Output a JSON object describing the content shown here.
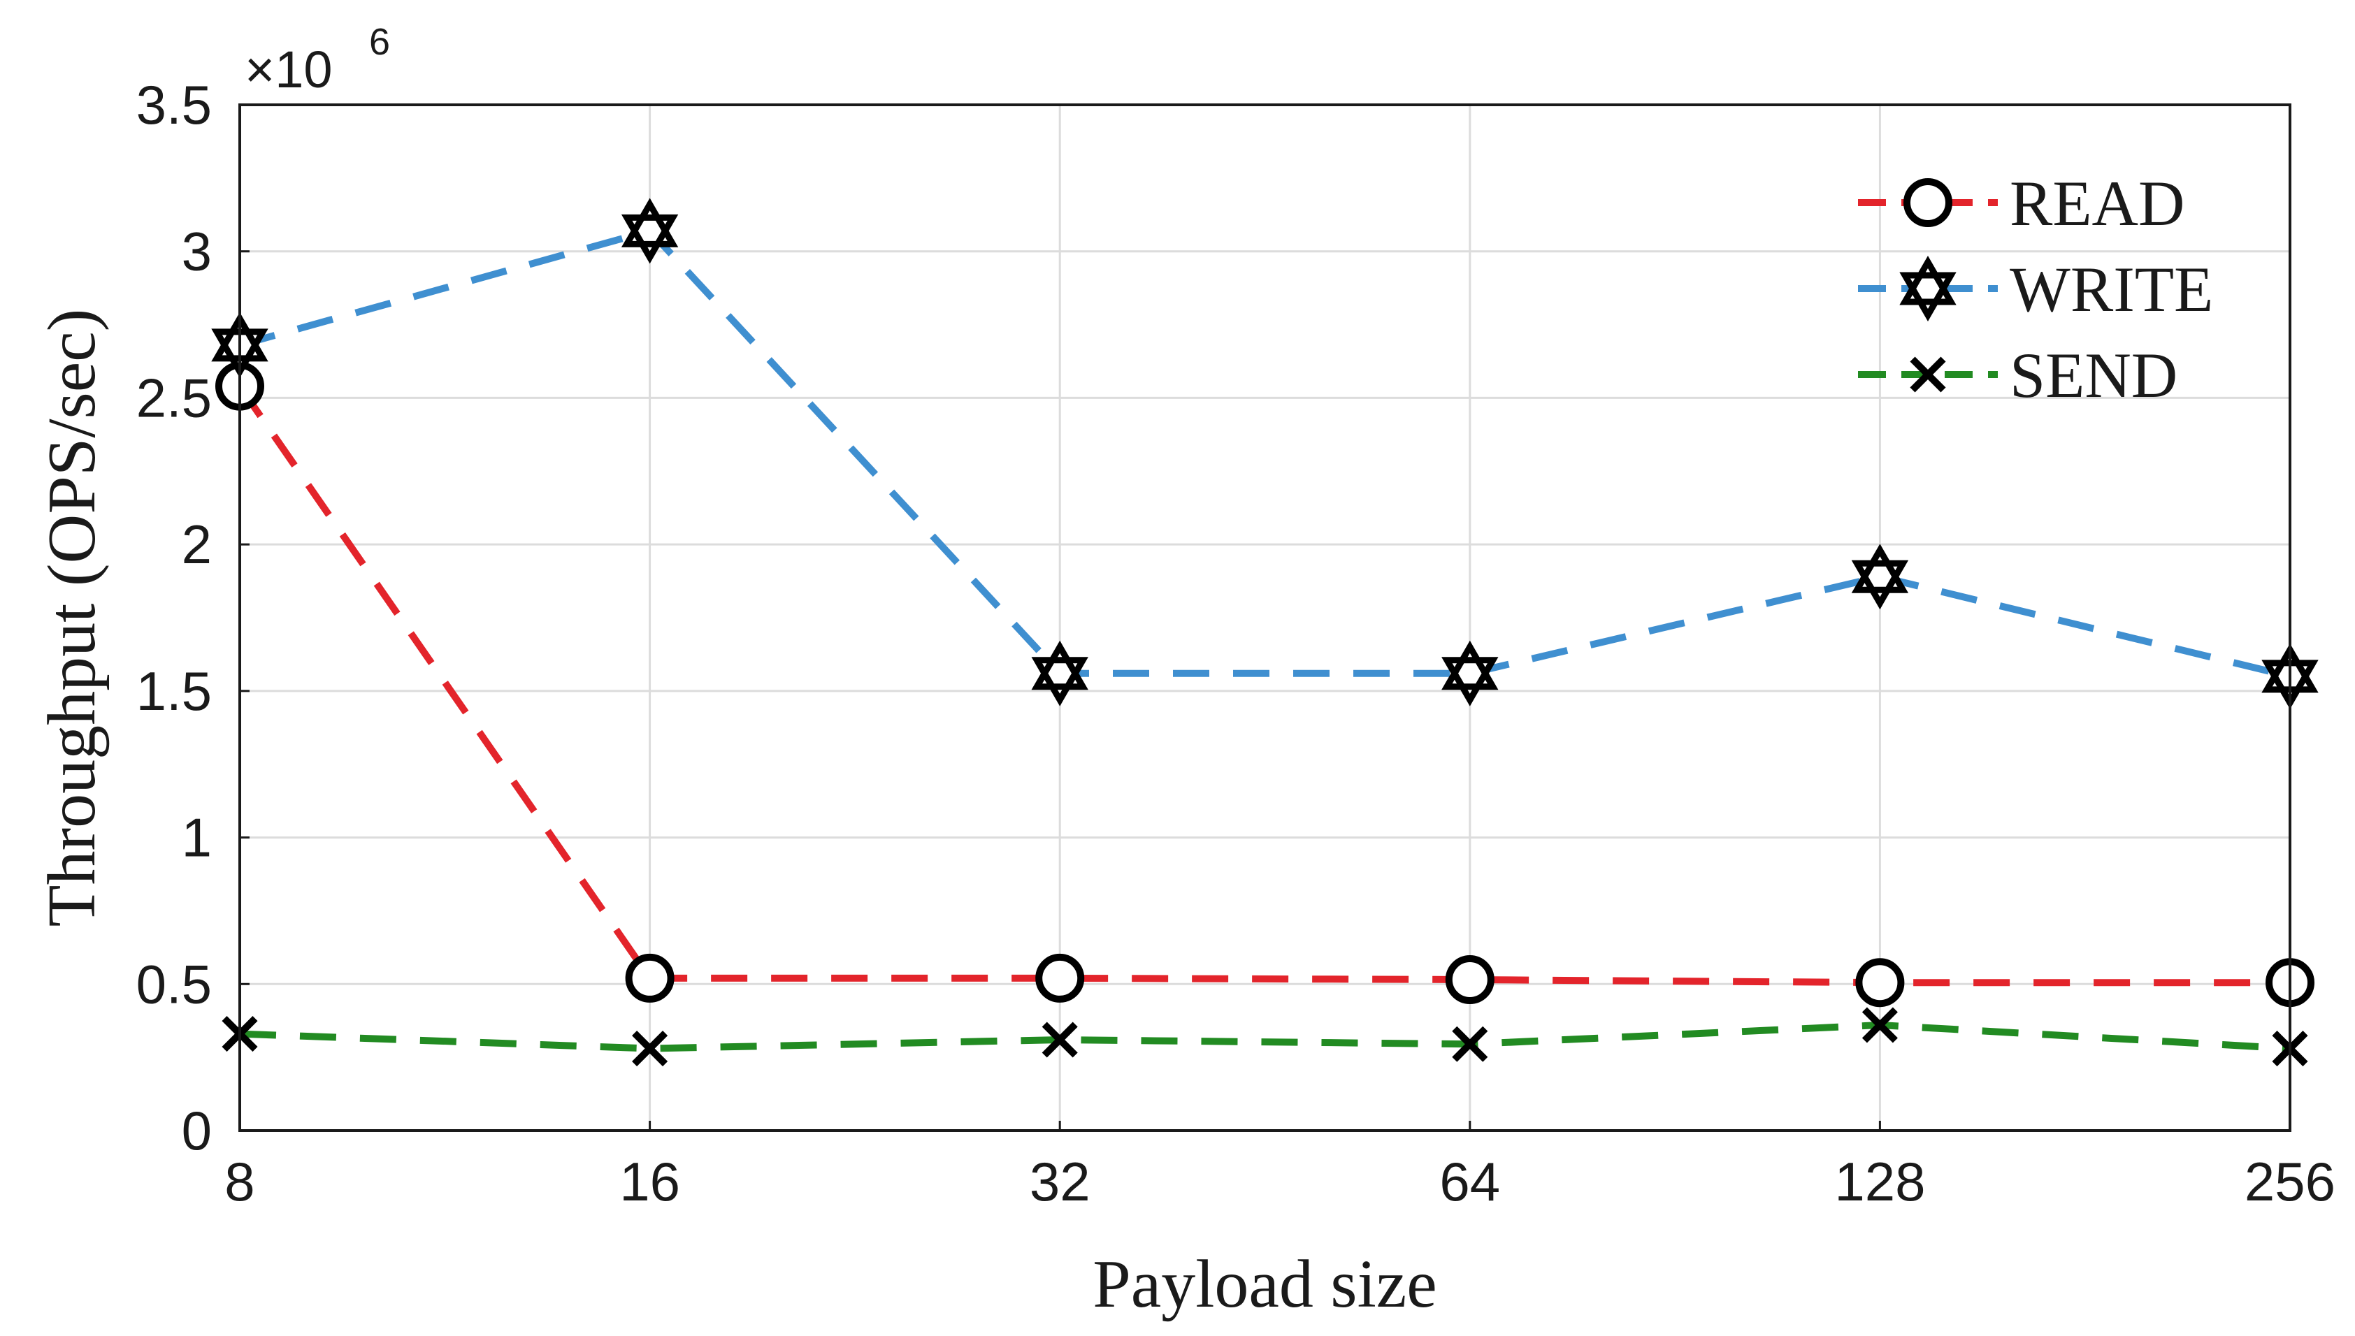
{
  "chart_data": {
    "type": "line",
    "title": "",
    "xlabel": "Payload size",
    "ylabel": "Throughput (OPS/sec)",
    "y_multiplier_label": "×10",
    "y_multiplier_exponent": "6",
    "categories": [
      "8",
      "16",
      "32",
      "64",
      "128",
      "256"
    ],
    "ylim": [
      0,
      3.5
    ],
    "yticks": [
      0,
      0.5,
      1,
      1.5,
      2,
      2.5,
      3,
      3.5
    ],
    "ytick_labels": [
      "0",
      "0.5",
      "1",
      "1.5",
      "2",
      "2.5",
      "3",
      "3.5"
    ],
    "grid": true,
    "legend_position": "top-right",
    "series": [
      {
        "name": "READ",
        "color": "#e3242b",
        "marker": "circle",
        "values": [
          2.54,
          0.52,
          0.52,
          0.515,
          0.505,
          0.505
        ]
      },
      {
        "name": "WRITE",
        "color": "#3f8fd0",
        "marker": "star",
        "values": [
          2.68,
          3.07,
          1.56,
          1.56,
          1.89,
          1.55
        ]
      },
      {
        "name": "SEND",
        "color": "#228b22",
        "marker": "x",
        "values": [
          0.33,
          0.28,
          0.31,
          0.295,
          0.36,
          0.28
        ]
      }
    ]
  }
}
